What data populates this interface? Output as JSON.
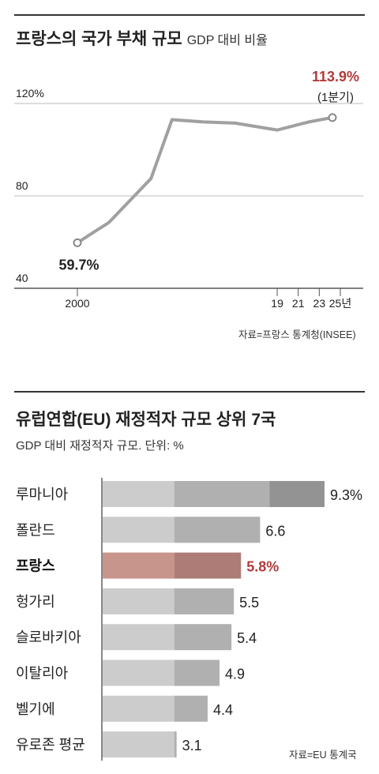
{
  "line_chart": {
    "title": "프랑스의 국가 부채 규모",
    "title_suffix": "GDP 대비 비율",
    "source": "자료=프랑스 통계청(INSEE)"
  },
  "bar_chart": {
    "title": "유럽연합(EU) 재정적자 규모 상위 7국",
    "subtitle": "GDP 대비 재정적자 규모. 단위: %",
    "source": "자료=EU 통계국"
  },
  "chart_data": [
    {
      "type": "line",
      "title": "프랑스의 국가 부채 규모",
      "subtitle": "GDP 대비 비율",
      "x": [
        2000,
        2003,
        2005,
        2007,
        2009,
        2012,
        2015,
        2017,
        2019,
        2022,
        2024.25
      ],
      "tick_labels": [
        "2000",
        "19",
        "21",
        "23",
        "25년"
      ],
      "tick_positions": [
        2000,
        2019,
        2021,
        2023,
        2025
      ],
      "series": [
        {
          "values": [
            59.7,
            68.5,
            78.0,
            87.5,
            113.0,
            112.0,
            111.5,
            110.0,
            108.5,
            112.0,
            113.9
          ],
          "color": "#a0a0a0"
        }
      ],
      "ylim": [
        40,
        135
      ],
      "yticks": [
        40,
        80,
        120
      ],
      "ytick_labels": [
        "40",
        "80",
        "120%"
      ],
      "grid": true,
      "annotations": {
        "start_label": "59.7%",
        "end_label": "113.9%",
        "end_note": "(1분기)"
      },
      "colors": {
        "line": "#a0a0a0",
        "highlight": "#b23a3a",
        "text": "#222222"
      }
    },
    {
      "type": "bar",
      "orientation": "horizontal",
      "title": "유럽연합(EU) 재정적자 규모 상위 7국",
      "subtitle": "GDP 대비 재정적자 규모. 단위: %",
      "categories": [
        "루마니아",
        "폴란드",
        "프랑스",
        "헝가리",
        "슬로바키아",
        "이탈리아",
        "벨기에",
        "유로존 평균"
      ],
      "values": [
        9.3,
        6.6,
        5.8,
        5.5,
        5.4,
        4.9,
        4.4,
        3.1
      ],
      "value_labels": [
        "9.3%",
        "6.6",
        "5.8%",
        "5.5",
        "5.4",
        "4.9",
        "4.4",
        "3.1"
      ],
      "highlight": "프랑스",
      "reference_lines": [
        3,
        7
      ],
      "xlim": [
        0,
        9.3
      ],
      "colors": {
        "seg1": "#cccccc",
        "seg2": "#b0b0b0",
        "seg3": "#939393",
        "hl1": "#c8958c",
        "hl2": "#ad7c76",
        "highlight_text": "#b23a3a"
      }
    }
  ]
}
